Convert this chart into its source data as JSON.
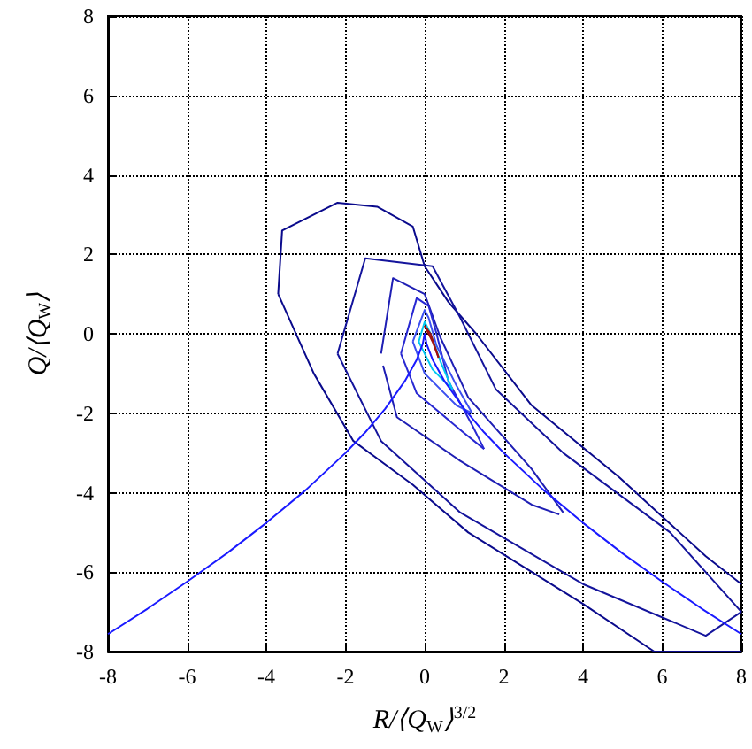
{
  "chart_data": {
    "type": "line",
    "xlabel": "R/⟨Q$_{W}$⟩$^{3/2}$",
    "ylabel": "Q/⟨Q$_{W}$⟩",
    "xlim": [
      -8,
      8
    ],
    "ylim": [
      -8,
      8
    ],
    "xticks": [
      -8,
      -6,
      -4,
      -2,
      0,
      2,
      4,
      6,
      8
    ],
    "yticks": [
      -8,
      -6,
      -4,
      -2,
      0,
      2,
      4,
      6,
      8
    ],
    "grid": true,
    "marker": "none",
    "line_style": "solid",
    "series": [
      {
        "color": "#0a0a8c",
        "x": [
          -3.7,
          -3.6,
          -2.2,
          -1.2,
          -0.3,
          0,
          0.6,
          1.3,
          2.7,
          4.9,
          7.1,
          8
        ],
        "values": [
          1,
          2.6,
          3.3,
          3.2,
          2.7,
          1.7,
          0.8,
          0,
          -1.8,
          -3.6,
          -5.6,
          -6.3
        ]
      },
      {
        "color": "#0a0a8c",
        "x": [
          -3.7,
          -2.8,
          -1.8,
          -0.3,
          1.1,
          4,
          5.8,
          8
        ],
        "values": [
          1,
          -1,
          -2.7,
          -3.8,
          -5,
          -6.8,
          -8,
          -8
        ]
      },
      {
        "color": "#14149c",
        "x": [
          -2.2,
          -1.5,
          0.2,
          0.9,
          1.8,
          3.5,
          6.2,
          8
        ],
        "values": [
          -0.5,
          1.9,
          1.7,
          0.4,
          -1.4,
          -3,
          -5,
          -7
        ]
      },
      {
        "color": "#14149c",
        "x": [
          -2.2,
          -1.1,
          0.9,
          4,
          7.1,
          8
        ],
        "values": [
          -0.5,
          -2.7,
          -4.5,
          -6.3,
          -7.6,
          -7
        ]
      },
      {
        "color": "#1e1eb4",
        "x": [
          -1.1,
          -0.8,
          0,
          0.4,
          1.1,
          2.7,
          3.5
        ],
        "values": [
          -0.5,
          1.4,
          1,
          -0.1,
          -1.6,
          -3.4,
          -4.5
        ]
      },
      {
        "color": "#1e1eb4",
        "x": [
          -1.05,
          -0.7,
          0.9,
          2.7,
          3.4
        ],
        "values": [
          -0.8,
          -2.1,
          -3.2,
          -4.3,
          -4.55
        ]
      },
      {
        "color": "#2828d2",
        "x": [
          -0.6,
          -0.2,
          0.1,
          0.3,
          0.6,
          1.2,
          1.5
        ],
        "values": [
          -0.5,
          0.9,
          0.7,
          0,
          -1.2,
          -2.3,
          -2.9
        ]
      },
      {
        "color": "#2828d2",
        "x": [
          -0.6,
          -0.2,
          1,
          1.5
        ],
        "values": [
          -0.5,
          -1.5,
          -2.5,
          -2.9
        ]
      },
      {
        "color": "#3c50f0",
        "x": [
          -0.3,
          0,
          0.1,
          0.3,
          0.8,
          1.2
        ],
        "values": [
          -0.2,
          0.6,
          0.4,
          -0.3,
          -1.3,
          -2
        ]
      },
      {
        "color": "#3c50f0",
        "x": [
          -0.3,
          0,
          0.8,
          1.2
        ],
        "values": [
          -0.2,
          -1,
          -1.8,
          -2
        ]
      },
      {
        "color": "#00c8f0",
        "x": [
          -0.15,
          0,
          0.15,
          0.4,
          0.7
        ],
        "values": [
          -0.2,
          0.3,
          0,
          -0.7,
          -1.4
        ]
      },
      {
        "color": "#00c8f0",
        "x": [
          -0.15,
          0.2,
          0.7
        ],
        "values": [
          -0.2,
          -0.9,
          -1.4
        ]
      },
      {
        "color": "#a01010",
        "x": [
          0,
          0.15,
          0.35
        ],
        "values": [
          0.2,
          0,
          -0.6
        ]
      },
      {
        "color": "#a01010",
        "x": [
          0,
          0.2,
          0.35
        ],
        "values": [
          0.2,
          -0.2,
          -0.6
        ]
      },
      {
        "color": "#1a1aff",
        "x": [
          -8,
          -7,
          -6,
          -5,
          -4,
          -3,
          -2,
          -1.5,
          -1,
          -0.5,
          -0.2,
          -0.05,
          0,
          0.05,
          0.2,
          0.5,
          1,
          1.5,
          2,
          3,
          4,
          5,
          6,
          7,
          8
        ],
        "values": [
          -7.56,
          -6.92,
          -6.24,
          -5.53,
          -4.76,
          -3.93,
          -3,
          -2.48,
          -1.89,
          -1.19,
          -0.65,
          -0.26,
          0,
          -0.26,
          -0.65,
          -1.19,
          -1.89,
          -2.48,
          -3,
          -3.93,
          -4.76,
          -5.53,
          -6.24,
          -6.92,
          -7.56
        ]
      }
    ]
  }
}
